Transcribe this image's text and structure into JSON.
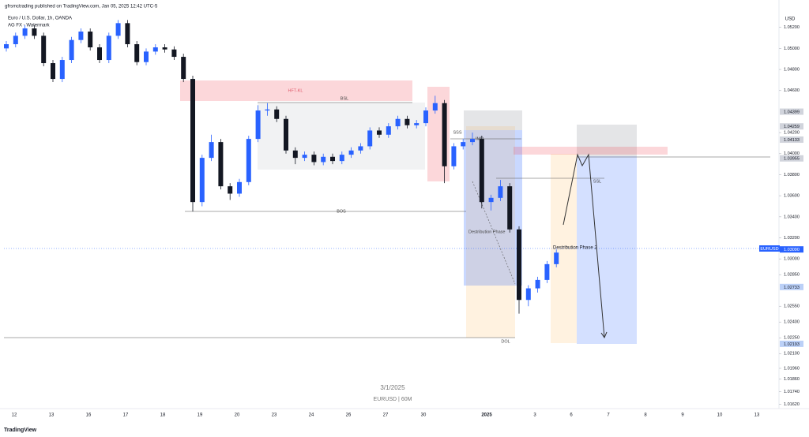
{
  "chart_data": {
    "type": "candlestick",
    "publisher": "gfrsmctrading published on TradingView.com, Jan 05, 2025 12:42 UTC-5",
    "title": "Euro / U.S. Dollar, 1h, OANDA",
    "subtitle": "AG FX - Watermark",
    "currency": "USD",
    "symbol": "EURUSD",
    "footer": "TradingView",
    "watermark": [
      "3/1/2025",
      "EURUSD | 60M"
    ],
    "annotations": {
      "hft": "HFT-KL",
      "bsl": "BSL",
      "sss": "SSS",
      "imd": "IMD",
      "bos": "BOS",
      "phase1": "Destribution Phase",
      "phase2": "Destribution Phase 2",
      "ssl": "SSL",
      "dol": "DOL"
    },
    "up_color": "#2962ff",
    "down_color": "#131722",
    "xlabels": [
      "12",
      "13",
      "16",
      "17",
      "18",
      "19",
      "20",
      "23",
      "24",
      "26",
      "27",
      "30",
      "2025",
      "3",
      "6",
      "7",
      "8",
      "9",
      "10",
      "13"
    ],
    "candles": [
      [
        1.05,
        1.0507,
        1.0497,
        1.0504
      ],
      [
        1.0504,
        1.0515,
        1.0501,
        1.0512
      ],
      [
        1.0512,
        1.0522,
        1.0509,
        1.0519
      ],
      [
        1.0519,
        1.0522,
        1.0509,
        1.0512
      ],
      [
        1.0512,
        1.0515,
        1.0483,
        1.0486
      ],
      [
        1.0486,
        1.0489,
        1.0468,
        1.0471
      ],
      [
        1.0471,
        1.0492,
        1.0468,
        1.0489
      ],
      [
        1.0489,
        1.0511,
        1.0486,
        1.0508
      ],
      [
        1.0508,
        1.0519,
        1.0505,
        1.0516
      ],
      [
        1.0516,
        1.0519,
        1.0498,
        1.0501
      ],
      [
        1.0501,
        1.0504,
        1.0486,
        1.0489
      ],
      [
        1.0489,
        1.0515,
        1.0486,
        1.0512
      ],
      [
        1.0512,
        1.0527,
        1.0509,
        1.0524
      ],
      [
        1.0524,
        1.0527,
        1.0501,
        1.0504
      ],
      [
        1.0504,
        1.0507,
        1.0484,
        1.0487
      ],
      [
        1.0487,
        1.05,
        1.0484,
        1.0497
      ],
      [
        1.0497,
        1.0504,
        1.0494,
        1.0501
      ],
      [
        1.0501,
        1.0504,
        1.0496,
        1.0499
      ],
      [
        1.0499,
        1.0502,
        1.0489,
        1.0492
      ],
      [
        1.0492,
        1.0495,
        1.0468,
        1.0471
      ],
      [
        1.0471,
        1.0474,
        1.0345,
        1.0354
      ],
      [
        1.0354,
        1.0399,
        1.035,
        1.0396
      ],
      [
        1.0396,
        1.0418,
        1.0393,
        1.0411
      ],
      [
        1.0411,
        1.0414,
        1.0366,
        1.0369
      ],
      [
        1.0369,
        1.0372,
        1.0356,
        1.0362
      ],
      [
        1.0362,
        1.0376,
        1.0359,
        1.0373
      ],
      [
        1.0373,
        1.0417,
        1.037,
        1.0414
      ],
      [
        1.0414,
        1.0446,
        1.0411,
        1.0441
      ],
      [
        1.0441,
        1.0448,
        1.0436,
        1.0442
      ],
      [
        1.0442,
        1.0445,
        1.043,
        1.0433
      ],
      [
        1.0433,
        1.0436,
        1.04,
        1.0403
      ],
      [
        1.0403,
        1.0406,
        1.039,
        1.0396
      ],
      [
        1.0396,
        1.0402,
        1.0393,
        1.0399
      ],
      [
        1.0399,
        1.0402,
        1.0389,
        1.0392
      ],
      [
        1.0392,
        1.04,
        1.0389,
        1.0397
      ],
      [
        1.0397,
        1.04,
        1.039,
        1.0393
      ],
      [
        1.0393,
        1.0402,
        1.039,
        1.0399
      ],
      [
        1.0399,
        1.0406,
        1.0396,
        1.0403
      ],
      [
        1.0403,
        1.041,
        1.04,
        1.0407
      ],
      [
        1.0407,
        1.0425,
        1.0404,
        1.0422
      ],
      [
        1.0422,
        1.0425,
        1.0415,
        1.0418
      ],
      [
        1.0418,
        1.0429,
        1.0415,
        1.0426
      ],
      [
        1.0426,
        1.0436,
        1.0423,
        1.0433
      ],
      [
        1.0433,
        1.0436,
        1.0424,
        1.0427
      ],
      [
        1.0427,
        1.0432,
        1.0424,
        1.0429
      ],
      [
        1.0429,
        1.0444,
        1.0426,
        1.0441
      ],
      [
        1.0441,
        1.0455,
        1.0438,
        1.0448
      ],
      [
        1.0448,
        1.0451,
        1.0372,
        1.0388
      ],
      [
        1.0388,
        1.041,
        1.0385,
        1.0407
      ],
      [
        1.0407,
        1.0414,
        1.0404,
        1.0411
      ],
      [
        1.0411,
        1.042,
        1.0408,
        1.0414
      ],
      [
        1.0414,
        1.0417,
        1.0348,
        1.0354
      ],
      [
        1.0354,
        1.0361,
        1.0346,
        1.0358
      ],
      [
        1.0358,
        1.0375,
        1.0355,
        1.0369
      ],
      [
        1.0369,
        1.0372,
        1.0325,
        1.0328
      ],
      [
        1.0328,
        1.0331,
        1.0248,
        1.0261
      ],
      [
        1.0261,
        1.0275,
        1.0255,
        1.0272
      ],
      [
        1.0272,
        1.0283,
        1.0268,
        1.028
      ],
      [
        1.028,
        1.0298,
        1.0277,
        1.0295
      ],
      [
        1.0295,
        1.0309,
        1.0292,
        1.0306
      ]
    ],
    "ylim": [
      1.0145,
      1.054
    ],
    "yticks": [
      {
        "value": 1.052,
        "label": "1.05200"
      },
      {
        "value": 1.05,
        "label": "1.05000"
      },
      {
        "value": 1.048,
        "label": "1.04800"
      },
      {
        "value": 1.046,
        "label": "1.04600"
      },
      {
        "value": 1.042,
        "label": "1.04200"
      },
      {
        "value": 1.04,
        "label": "1.04000"
      },
      {
        "value": 1.038,
        "label": "1.03800"
      },
      {
        "value": 1.036,
        "label": "1.03600"
      },
      {
        "value": 1.034,
        "label": "1.03400"
      },
      {
        "value": 1.032,
        "label": "1.03200"
      },
      {
        "value": 1.03,
        "label": "1.03000"
      },
      {
        "value": 1.0285,
        "label": "1.02850"
      },
      {
        "value": 1.0255,
        "label": "1.02550"
      },
      {
        "value": 1.024,
        "label": "1.02400"
      },
      {
        "value": 1.0225,
        "label": "1.02250"
      },
      {
        "value": 1.021,
        "label": "1.02100"
      },
      {
        "value": 1.0196,
        "label": "1.01960"
      },
      {
        "value": 1.0186,
        "label": "1.01860"
      },
      {
        "value": 1.0174,
        "label": "1.01740"
      },
      {
        "value": 1.0162,
        "label": "1.01620"
      }
    ],
    "price_labels": [
      {
        "value": 1.04399,
        "color": "#d1d4dc"
      },
      {
        "value": 1.04259,
        "color": "#d1d4dc"
      },
      {
        "value": 1.04133,
        "color": "#d1d4dc"
      },
      {
        "value": 1.03955,
        "color": "#d1d4dc"
      },
      {
        "value": 1.0309,
        "label": "1.03090",
        "color": "#2962ff"
      },
      {
        "value": 1.02733,
        "color": "#bbd0f7"
      },
      {
        "value": 1.02193,
        "color": "#bbd0f7"
      }
    ]
  }
}
